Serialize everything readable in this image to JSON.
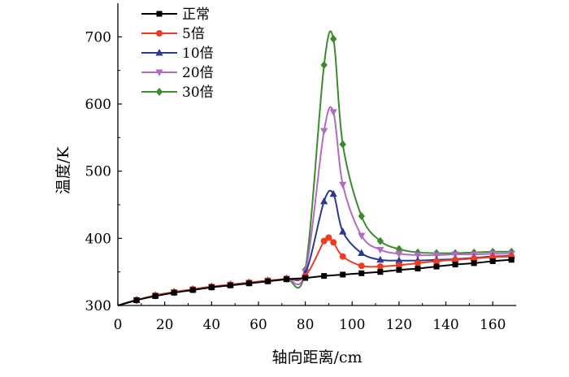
{
  "chart_data": {
    "type": "line",
    "title": "",
    "xlabel": "轴向距离/cm",
    "ylabel": "温度/K",
    "xlim": [
      0,
      170
    ],
    "ylim": [
      300,
      750
    ],
    "xticks": [
      0,
      20,
      40,
      60,
      80,
      100,
      120,
      140,
      160
    ],
    "yticks": [
      300,
      400,
      500,
      600,
      700
    ],
    "legend_position": "top-left",
    "grid": false,
    "series": [
      {
        "name": "正常",
        "color": "#000000",
        "marker": "square",
        "x": [
          0,
          8,
          16,
          24,
          32,
          40,
          48,
          56,
          64,
          72,
          80,
          88,
          96,
          104,
          112,
          120,
          128,
          136,
          144,
          152,
          160,
          168
        ],
        "y": [
          300,
          308,
          314,
          319,
          323,
          327,
          330,
          333,
          336,
          339,
          341,
          344,
          346,
          348,
          350,
          353,
          355,
          358,
          361,
          363,
          366,
          368
        ]
      },
      {
        "name": "5倍",
        "color": "#ee3b24",
        "marker": "circle",
        "x": [
          0,
          8,
          16,
          24,
          32,
          40,
          48,
          56,
          64,
          72,
          80,
          88,
          90,
          92,
          96,
          104,
          112,
          120,
          128,
          136,
          144,
          152,
          160,
          168
        ],
        "y": [
          300,
          308,
          315,
          320,
          324,
          328,
          331,
          334,
          337,
          340,
          344,
          396,
          401,
          394,
          373,
          359,
          358,
          360,
          363,
          366,
          368,
          370,
          372,
          373
        ]
      },
      {
        "name": "10倍",
        "color": "#2b3a8f",
        "marker": "triangle-up",
        "x": [
          0,
          8,
          16,
          24,
          32,
          40,
          48,
          56,
          64,
          72,
          80,
          88,
          92,
          96,
          104,
          112,
          120,
          128,
          136,
          144,
          152,
          160,
          168
        ],
        "y": [
          300,
          308,
          315,
          320,
          324,
          328,
          331,
          334,
          337,
          340,
          348,
          455,
          466,
          410,
          378,
          368,
          367,
          367,
          368,
          369,
          371,
          373,
          374
        ]
      },
      {
        "name": "20倍",
        "color": "#b36bc2",
        "marker": "triangle-down",
        "x": [
          0,
          8,
          16,
          24,
          32,
          40,
          48,
          56,
          64,
          72,
          80,
          88,
          92,
          96,
          104,
          112,
          120,
          128,
          136,
          144,
          152,
          160,
          168
        ],
        "y": [
          300,
          308,
          315,
          320,
          324,
          328,
          331,
          334,
          337,
          340,
          350,
          560,
          588,
          480,
          404,
          383,
          377,
          375,
          375,
          376,
          376,
          377,
          377
        ]
      },
      {
        "name": "30倍",
        "color": "#3c8a2e",
        "marker": "diamond",
        "x": [
          0,
          8,
          16,
          24,
          32,
          40,
          48,
          56,
          64,
          72,
          80,
          88,
          92,
          96,
          104,
          112,
          120,
          128,
          136,
          144,
          152,
          160,
          168
        ],
        "y": [
          300,
          308,
          315,
          320,
          324,
          328,
          331,
          334,
          337,
          340,
          353,
          658,
          697,
          540,
          433,
          396,
          384,
          379,
          378,
          378,
          379,
          380,
          380
        ]
      }
    ]
  }
}
